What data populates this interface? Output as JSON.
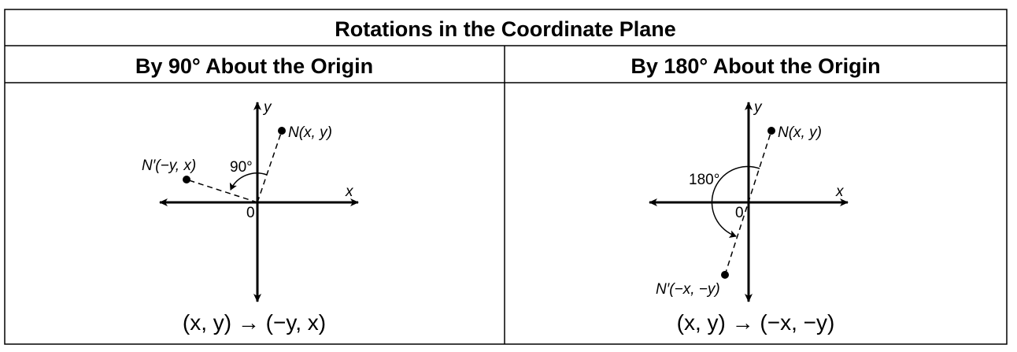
{
  "table": {
    "title": "Rotations in the Coordinate Plane",
    "columns": [
      {
        "header": "By 90° About the Origin",
        "x_axis_label": "x",
        "y_axis_label": "y",
        "origin_label": "0",
        "point_label": "N(x, y)",
        "image_label": "N′(−y, x)",
        "angle_label": "90°",
        "rule": "(x, y) → (−y, x)"
      },
      {
        "header": "By 180° About the Origin",
        "x_axis_label": "x",
        "y_axis_label": "y",
        "origin_label": "0",
        "point_label": "N(x, y)",
        "image_label": "N′(−x, −y)",
        "angle_label": "180°",
        "rule": "(x, y) → (−x, −y)"
      }
    ]
  }
}
